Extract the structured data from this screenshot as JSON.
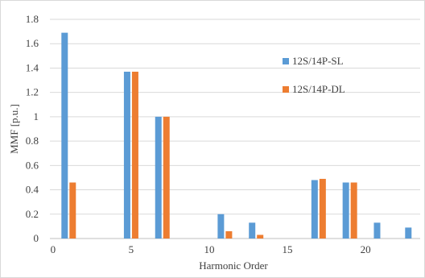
{
  "chart_data": {
    "type": "bar",
    "xlabel": "Harmonic Order",
    "ylabel": "MMF [p.u.]",
    "ylim": [
      0,
      1.8
    ],
    "yticks": [
      0,
      0.2,
      0.4,
      0.6,
      0.8,
      1,
      1.2,
      1.4,
      1.6,
      1.8
    ],
    "ytick_labels": [
      "0",
      "0.2",
      "0.4",
      "0.6",
      "0.8",
      "1",
      "1.2",
      "1.4",
      "1.6",
      "1.8"
    ],
    "xlim": [
      -0.2,
      23.5
    ],
    "xticks": [
      0,
      5,
      10,
      15,
      20
    ],
    "xtick_labels": [
      "0",
      "5",
      "10",
      "15",
      "20"
    ],
    "grid": true,
    "legend_position": "right",
    "series": [
      {
        "name": "12S/14P-SL",
        "color": "#5b9bd5",
        "points": [
          {
            "x": 1,
            "y": 1.69
          },
          {
            "x": 5,
            "y": 1.37
          },
          {
            "x": 7,
            "y": 1.0
          },
          {
            "x": 11,
            "y": 0.2
          },
          {
            "x": 13,
            "y": 0.13
          },
          {
            "x": 17,
            "y": 0.48
          },
          {
            "x": 19,
            "y": 0.46
          },
          {
            "x": 21,
            "y": 0.13
          },
          {
            "x": 23,
            "y": 0.09
          }
        ]
      },
      {
        "name": "12S/14P-DL",
        "color": "#ed7d31",
        "points": [
          {
            "x": 1,
            "y": 0.46
          },
          {
            "x": 5,
            "y": 1.37
          },
          {
            "x": 7,
            "y": 1.0
          },
          {
            "x": 11,
            "y": 0.06
          },
          {
            "x": 13,
            "y": 0.03
          },
          {
            "x": 17,
            "y": 0.49
          },
          {
            "x": 19,
            "y": 0.46
          }
        ]
      }
    ]
  }
}
